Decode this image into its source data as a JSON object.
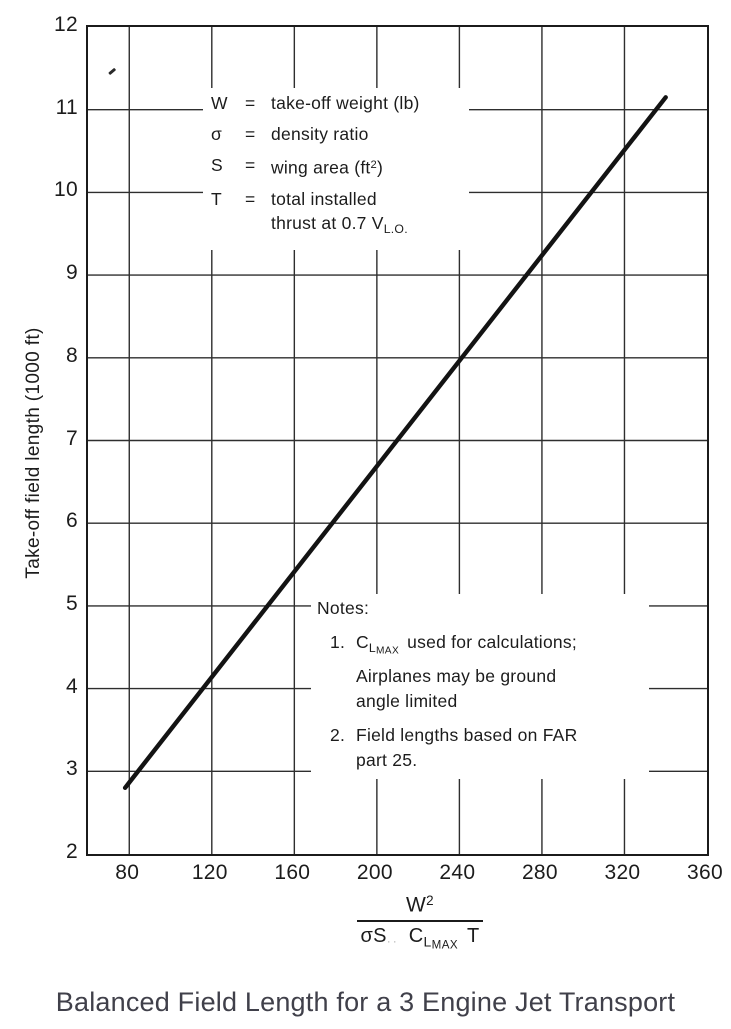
{
  "caption": "Balanced Field Length for a 3 Engine Jet Transport",
  "chart_data": {
    "type": "line",
    "title": "Balanced Field Length for a 3 Engine Jet Transport",
    "xlabel": "W² / (σ S C_LMAX T)",
    "ylabel": "Take-off field length (1000 ft)",
    "xlim": [
      60,
      360
    ],
    "ylim": [
      2,
      12
    ],
    "x_ticks": [
      80,
      120,
      160,
      200,
      240,
      280,
      320,
      360
    ],
    "y_ticks": [
      2,
      3,
      4,
      5,
      6,
      7,
      8,
      9,
      10,
      11,
      12
    ],
    "x_gridlines": [
      80,
      120,
      160,
      200,
      240,
      280,
      320
    ],
    "y_gridlines": [
      3,
      4,
      5,
      6,
      7,
      8,
      9,
      10,
      11
    ],
    "grid": true,
    "legend_position": "upper-left-inside",
    "series": [
      {
        "name": "take-off field length",
        "points": [
          [
            78,
            2.8
          ],
          [
            340,
            11.15
          ]
        ],
        "sampled_x": [
          80,
          120,
          160,
          200,
          240,
          280,
          320,
          340
        ],
        "sampled_y": [
          2.9,
          4.1,
          5.4,
          6.7,
          8.0,
          9.2,
          10.5,
          11.2
        ]
      }
    ]
  },
  "legend": {
    "rows": [
      {
        "symbol": "W",
        "eq": "=",
        "text": "take-off weight (lb)"
      },
      {
        "symbol": "σ",
        "eq": "=",
        "text": "density ratio"
      },
      {
        "symbol": "S",
        "eq": "=",
        "text_pre": "wing area (ft",
        "text_sup": "2",
        "text_post": ")"
      },
      {
        "symbol": "T",
        "eq": "=",
        "line1": "total installed",
        "line2": "thrust at 0.7 V",
        "line2_sub": "L.O."
      }
    ]
  },
  "notes": {
    "title": "Notes:",
    "item1": {
      "num": "1.",
      "sym_base": "C",
      "sym_sub": "L",
      "sym_subsub": "MAX",
      "text": "used for calculations;",
      "line2": "Airplanes may be ground",
      "line3": "angle limited"
    },
    "item2": {
      "num": "2.",
      "line1": "Field lengths based on FAR",
      "line2": "part 25."
    }
  },
  "xaxis_formula": {
    "num_base": "W",
    "num_sup": "2",
    "den_sigma": "σ",
    "den_s": "S",
    "den_s_faint": "··",
    "den_cbase": "C",
    "den_csub": "L",
    "den_csubsub": "MAX",
    "den_t": "T"
  }
}
